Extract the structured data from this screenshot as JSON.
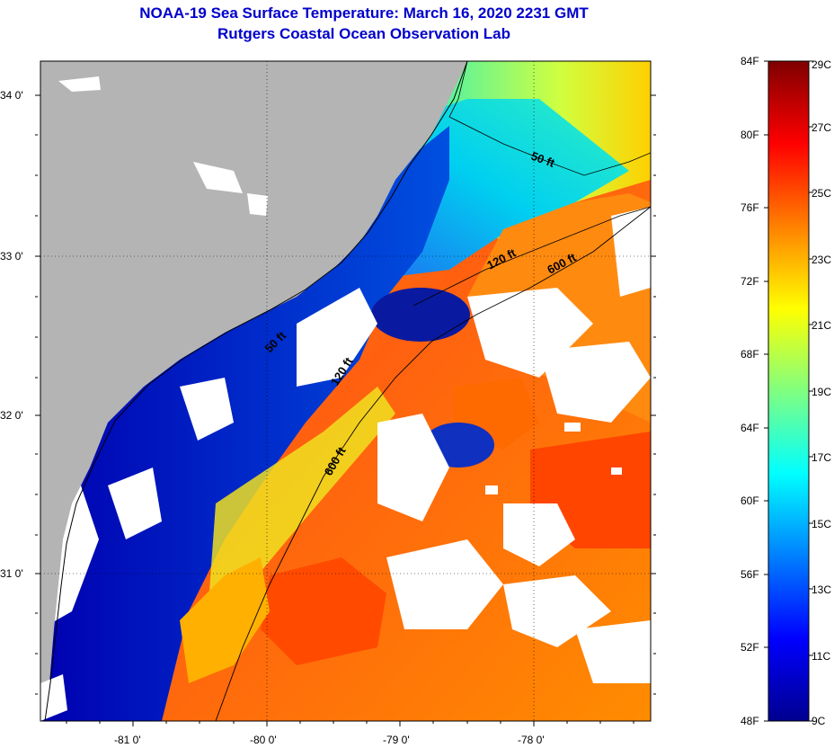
{
  "header": {
    "title": "NOAA-19 Sea Surface Temperature:  March 16, 2020 2231 GMT",
    "subtitle": "Rutgers Coastal Ocean Observation Lab"
  },
  "map": {
    "lat_labels": [
      "34 0'",
      "33 0'",
      "32 0'",
      "31 0'"
    ],
    "lon_labels": [
      "-81 0'",
      "-80 0'",
      "-79 0'",
      "-78 0'"
    ],
    "lat_range": [
      30.2,
      34.2
    ],
    "lon_range": [
      -81.5,
      -77.1
    ],
    "land_color": "#b4b4b4",
    "cloud_color": "#ffffff",
    "contours": [
      {
        "label": "50 ft"
      },
      {
        "label": "120 ft"
      },
      {
        "label": "600 ft"
      },
      {
        "label": "600 ft"
      },
      {
        "label": "120 ft"
      },
      {
        "label": "50 ft"
      }
    ]
  },
  "colorbar": {
    "fahrenheit": [
      "84F",
      "80F",
      "76F",
      "72F",
      "68F",
      "64F",
      "60F",
      "56F",
      "52F",
      "48F"
    ],
    "celsius": [
      "29C",
      "27C",
      "25C",
      "23C",
      "21C",
      "19C",
      "17C",
      "15C",
      "13C",
      "11C",
      "9C"
    ],
    "range_c": [
      9,
      29
    ],
    "colors": [
      "#7f0000",
      "#ff0000",
      "#ff8000",
      "#ffff00",
      "#80ff80",
      "#00ffff",
      "#0080ff",
      "#0000ff",
      "#00008f"
    ]
  }
}
